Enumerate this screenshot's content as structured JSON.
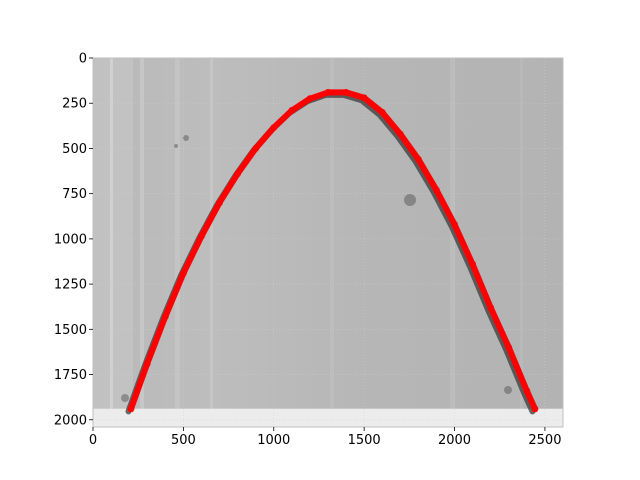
{
  "chart_data": {
    "type": "scatter",
    "title": "",
    "xlabel": "",
    "ylabel": "",
    "xlim": [
      0,
      2600
    ],
    "ylim": [
      2040,
      0
    ],
    "y_inverted": true,
    "image_height": 1940,
    "background": "grayscale photograph of a surface with an arch-shaped dark trace",
    "grid": true,
    "x_ticks": [
      {
        "value": 0,
        "label": "0"
      },
      {
        "value": 500,
        "label": "500"
      },
      {
        "value": 1000,
        "label": "1000"
      },
      {
        "value": 1500,
        "label": "1500"
      },
      {
        "value": 2000,
        "label": "2000"
      },
      {
        "value": 2500,
        "label": "2500"
      }
    ],
    "y_ticks": [
      {
        "value": 0,
        "label": "0"
      },
      {
        "value": 250,
        "label": "250"
      },
      {
        "value": 500,
        "label": "500"
      },
      {
        "value": 750,
        "label": "750"
      },
      {
        "value": 1000,
        "label": "1000"
      },
      {
        "value": 1250,
        "label": "1250"
      },
      {
        "value": 1500,
        "label": "1500"
      },
      {
        "value": 1750,
        "label": "1750"
      },
      {
        "value": 2000,
        "label": "2000"
      }
    ],
    "series": [
      {
        "marker_color": "#ff0000",
        "x": [
          210,
          300,
          400,
          500,
          600,
          700,
          800,
          900,
          1000,
          1100,
          1200,
          1300,
          1400,
          1500,
          1600,
          1700,
          1800,
          1900,
          2000,
          2100,
          2200,
          2300,
          2400,
          2445
        ],
        "y": [
          1940,
          1690,
          1430,
          1190,
          985,
          800,
          640,
          500,
          385,
          290,
          225,
          190,
          190,
          220,
          300,
          420,
          560,
          730,
          920,
          1140,
          1380,
          1600,
          1840,
          1940
        ]
      }
    ],
    "colors": {
      "trace": "#ff0000",
      "plot_border": "#bfbfbf",
      "grid": "#d0d0d0"
    }
  }
}
